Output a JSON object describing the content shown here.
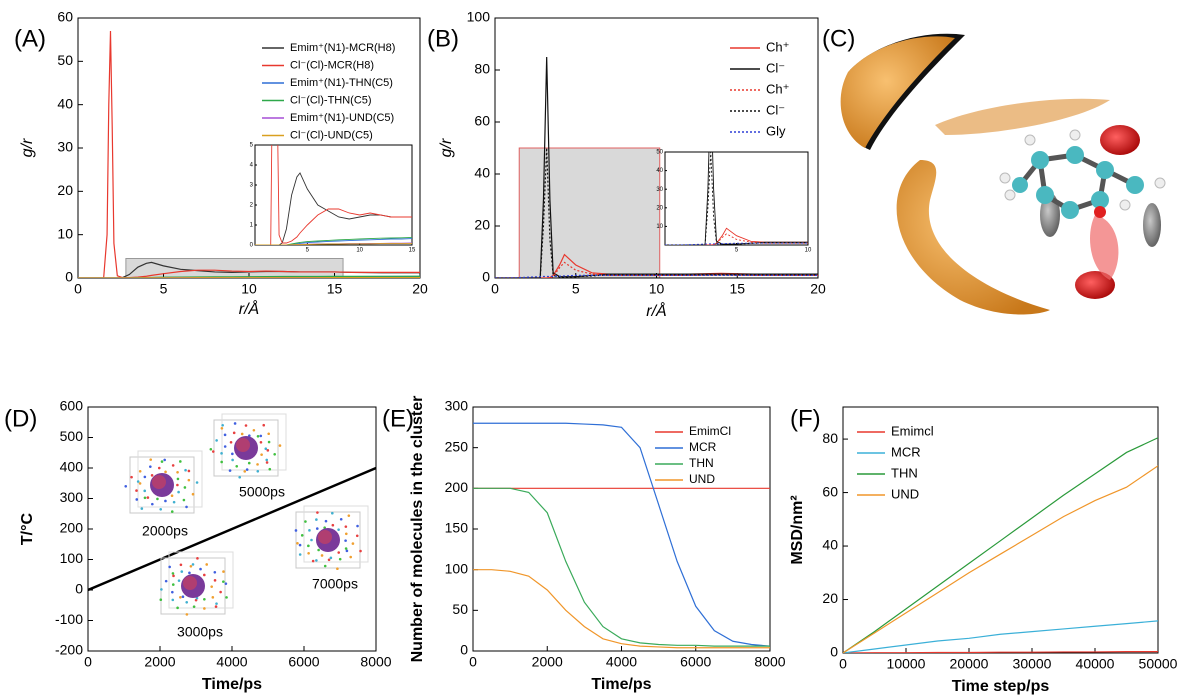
{
  "chart_data": [
    {
      "type": "line",
      "panel_label": "(A)",
      "xlabel": "r/Å",
      "ylabel": "g/r",
      "xlim": [
        0,
        20
      ],
      "ylim": [
        0,
        60
      ],
      "xticks": [
        0,
        5,
        10,
        15,
        20
      ],
      "yticks": [
        0,
        10,
        20,
        30,
        40,
        50,
        60
      ],
      "legend": "upper right",
      "x": [
        0,
        1,
        1.5,
        1.7,
        1.8,
        1.9,
        2.0,
        2.1,
        2.3,
        2.6,
        3,
        3.5,
        4,
        4.3,
        5,
        6,
        7,
        8,
        9,
        10,
        11,
        12,
        13,
        14,
        15,
        16,
        18,
        20
      ],
      "series": [
        {
          "name": "Emim⁺(N1)-MCR(H8)",
          "color": "#333333",
          "linestyle": "solid",
          "values": [
            0,
            0,
            0,
            0,
            0,
            0,
            0,
            0,
            0,
            0.1,
            0.8,
            2.5,
            3.4,
            3.6,
            2.8,
            2.0,
            1.7,
            1.4,
            1.3,
            1.4,
            1.5,
            1.5,
            1.4,
            1.4,
            1.4,
            1.3,
            1.2,
            1.2
          ]
        },
        {
          "name": "Cl⁻(Cl)-MCR(H8)",
          "color": "#e8382e",
          "linestyle": "solid",
          "values": [
            0,
            0,
            0,
            10,
            40,
            57,
            35,
            8,
            0.5,
            0.1,
            0.1,
            0.2,
            0.4,
            0.6,
            1.0,
            1.5,
            1.8,
            1.8,
            1.6,
            1.5,
            1.6,
            1.5,
            1.4,
            1.4,
            1.4,
            1.3,
            1.3,
            1.3
          ]
        },
        {
          "name": "Emim⁺(N1)-THN(C5)",
          "color": "#2f6fd6",
          "linestyle": "solid",
          "values": [
            0,
            0,
            0,
            0,
            0,
            0,
            0,
            0,
            0,
            0,
            0,
            0.02,
            0.05,
            0.08,
            0.12,
            0.15,
            0.18,
            0.2,
            0.22,
            0.24,
            0.26,
            0.28,
            0.3,
            0.3,
            0.32,
            0.33,
            0.34,
            0.35
          ]
        },
        {
          "name": "Cl⁻(Cl)-THN(C5)",
          "color": "#2ea84a",
          "linestyle": "solid",
          "values": [
            0,
            0,
            0,
            0,
            0,
            0,
            0,
            0,
            0,
            0,
            0,
            0.05,
            0.1,
            0.13,
            0.17,
            0.2,
            0.23,
            0.26,
            0.28,
            0.3,
            0.32,
            0.34,
            0.35,
            0.36,
            0.38,
            0.38,
            0.39,
            0.4
          ]
        },
        {
          "name": "Emim⁺(N1)-UND(C5)",
          "color": "#a64fd6",
          "linestyle": "solid",
          "values": [
            0,
            0,
            0,
            0,
            0,
            0,
            0,
            0,
            0,
            0,
            0,
            0.01,
            0.02,
            0.03,
            0.04,
            0.05,
            0.06,
            0.06,
            0.07,
            0.07,
            0.08,
            0.08,
            0.09,
            0.09,
            0.1,
            0.1,
            0.1,
            0.1
          ]
        },
        {
          "name": "Cl⁻(Cl)-UND(C5)",
          "color": "#d9a020",
          "linestyle": "solid",
          "values": [
            0,
            0,
            0,
            0,
            0,
            0,
            0,
            0,
            0,
            0,
            0,
            0.01,
            0.02,
            0.02,
            0.03,
            0.04,
            0.05,
            0.05,
            0.06,
            0.06,
            0.06,
            0.07,
            0.07,
            0.07,
            0.08,
            0.08,
            0.08,
            0.08
          ]
        }
      ],
      "inset": {
        "xlim": [
          0,
          15
        ],
        "ylim": [
          0,
          5
        ],
        "xticks": [
          5,
          10,
          15
        ],
        "yticks": [
          0,
          1,
          2,
          3,
          4,
          5
        ],
        "highlight_xlim": [
          2.8,
          15.5
        ],
        "highlight_ylim": [
          0,
          4.5
        ],
        "highlight_color": "#d9d9d9",
        "highlight_edge": "#999999"
      }
    },
    {
      "type": "line",
      "panel_label": "(B)",
      "xlabel": "r/Å",
      "ylabel": "g/r",
      "xlim": [
        0,
        20
      ],
      "ylim": [
        0,
        100
      ],
      "xticks": [
        0,
        5,
        10,
        15,
        20
      ],
      "yticks": [
        0,
        20,
        40,
        60,
        80,
        100
      ],
      "legend": "upper right",
      "x": [
        0,
        1,
        2,
        2.8,
        3.0,
        3.2,
        3.4,
        3.6,
        4,
        4.3,
        5,
        6,
        7,
        8,
        10,
        12,
        14,
        16,
        18,
        20
      ],
      "series": [
        {
          "name": "Ch⁺",
          "color": "#e8382e",
          "linestyle": "solid",
          "values": [
            0,
            0,
            0,
            0,
            0,
            0,
            0.2,
            1,
            5,
            9,
            5,
            2,
            1.5,
            1.5,
            1.5,
            1.5,
            1.8,
            1.5,
            1.5,
            1.5
          ]
        },
        {
          "name": "Cl⁻",
          "color": "#111111",
          "linestyle": "solid",
          "values": [
            0,
            0,
            0,
            0,
            30,
            85,
            30,
            2,
            0.5,
            0.5,
            0.5,
            1,
            1.5,
            1.5,
            1.5,
            1.5,
            1.5,
            1.5,
            1.5,
            1.5
          ]
        },
        {
          "name": "Ch⁺",
          "color": "#e8382e",
          "linestyle": "dotted",
          "values": [
            0,
            0,
            0,
            0,
            0,
            0,
            0.1,
            0.5,
            4,
            6,
            3,
            1.5,
            1,
            1,
            1,
            1,
            1.2,
            1,
            1,
            1
          ]
        },
        {
          "name": "Cl⁻",
          "color": "#111111",
          "linestyle": "dotted",
          "values": [
            0,
            0,
            0,
            0,
            20,
            50,
            15,
            1,
            0.4,
            0.4,
            0.5,
            0.8,
            1.2,
            1.2,
            1.2,
            1.2,
            1.2,
            1.2,
            1.2,
            1.2
          ]
        },
        {
          "name": "Gly",
          "color": "#2f3fd6",
          "linestyle": "dotted",
          "values": [
            0,
            0,
            0.3,
            0.5,
            0.6,
            0.6,
            0.6,
            0.6,
            0.7,
            0.8,
            1,
            1,
            1,
            1,
            1,
            1,
            1,
            1,
            1,
            1
          ]
        }
      ],
      "inset": {
        "xlim": [
          0,
          10
        ],
        "ylim": [
          0,
          50
        ],
        "xticks": [
          5,
          10
        ],
        "yticks": [
          10,
          20,
          30,
          40,
          50
        ],
        "highlight_xlim": [
          1.5,
          10.2
        ],
        "highlight_ylim": [
          0,
          50
        ],
        "highlight_color": "#d9d9d9",
        "highlight_edge": "#e06060"
      }
    },
    {
      "type": "image",
      "panel_label": "(C)"
    },
    {
      "type": "line",
      "panel_label": "(D)",
      "xlabel": "Time/ps",
      "ylabel": "T/°C",
      "xlim": [
        0,
        8000
      ],
      "ylim": [
        -200,
        600
      ],
      "xticks": [
        0,
        2000,
        4000,
        6000,
        8000
      ],
      "yticks": [
        -200,
        -100,
        0,
        100,
        200,
        300,
        400,
        500,
        600
      ],
      "x": [
        0,
        500,
        1000,
        1500,
        2000,
        2500,
        3000,
        3500,
        4000,
        4500,
        5000,
        5500,
        6000,
        6500,
        7000,
        7500,
        8000
      ],
      "series": [
        {
          "color": "#000000",
          "linestyle": "solid",
          "values": [
            0,
            25,
            50,
            75,
            100,
            125,
            150,
            175,
            200,
            225,
            250,
            275,
            300,
            325,
            350,
            375,
            400
          ]
        }
      ],
      "annotations": [
        "2000ps",
        "5000ps",
        "3000ps",
        "7000ps"
      ]
    },
    {
      "type": "line",
      "panel_label": "(E)",
      "xlabel": "Time/ps",
      "ylabel": "Number of molecules in the cluster",
      "xlim": [
        0,
        8000
      ],
      "ylim": [
        0,
        300
      ],
      "xticks": [
        0,
        2000,
        4000,
        6000,
        8000
      ],
      "yticks": [
        0,
        50,
        100,
        150,
        200,
        250,
        300
      ],
      "legend": "upper right",
      "x": [
        0,
        500,
        1000,
        1500,
        2000,
        2500,
        3000,
        3500,
        4000,
        4500,
        5000,
        5500,
        6000,
        6500,
        7000,
        7500,
        8000
      ],
      "series": [
        {
          "name": "EmimCl",
          "color": "#e8382e",
          "linestyle": "solid",
          "values": [
            200,
            200,
            200,
            200,
            200,
            200,
            200,
            200,
            200,
            200,
            200,
            200,
            200,
            200,
            200,
            200,
            200
          ]
        },
        {
          "name": "MCR",
          "color": "#2f6fd6",
          "linestyle": "solid",
          "values": [
            280,
            280,
            280,
            280,
            280,
            280,
            279,
            278,
            275,
            250,
            180,
            110,
            55,
            25,
            12,
            8,
            6
          ]
        },
        {
          "name": "THN",
          "color": "#3aaa5a",
          "linestyle": "solid",
          "values": [
            200,
            200,
            200,
            195,
            170,
            110,
            60,
            30,
            15,
            10,
            8,
            7,
            7,
            6,
            6,
            6,
            6
          ]
        },
        {
          "name": "UND",
          "color": "#f0962a",
          "linestyle": "solid",
          "values": [
            100,
            100,
            98,
            92,
            75,
            50,
            30,
            15,
            9,
            6,
            5,
            4,
            4,
            4,
            4,
            4,
            4
          ]
        }
      ]
    },
    {
      "type": "line",
      "panel_label": "(F)",
      "xlabel": "Time step/ps",
      "ylabel": "MSD/nm²",
      "xlim": [
        0,
        50000
      ],
      "ylim": [
        0,
        92
      ],
      "xticks": [
        0,
        10000,
        20000,
        30000,
        40000,
        50000
      ],
      "yticks": [
        0,
        20,
        40,
        60,
        80
      ],
      "legend": "upper left",
      "x": [
        0,
        5000,
        10000,
        15000,
        20000,
        25000,
        30000,
        35000,
        40000,
        45000,
        50000
      ],
      "series": [
        {
          "name": "Emimcl",
          "color": "#e8382e",
          "linestyle": "solid",
          "values": [
            0,
            0.1,
            0.1,
            0.2,
            0.2,
            0.3,
            0.3,
            0.4,
            0.4,
            0.5,
            0.5
          ]
        },
        {
          "name": "MCR",
          "color": "#3bb0d8",
          "linestyle": "solid",
          "values": [
            0,
            1.5,
            3,
            4.5,
            5.5,
            7,
            8,
            9,
            10,
            11,
            12
          ]
        },
        {
          "name": "THN",
          "color": "#2a9a3a",
          "linestyle": "solid",
          "values": [
            0,
            8,
            16.5,
            25,
            33.5,
            42,
            50.5,
            59,
            67,
            75,
            80.5
          ]
        },
        {
          "name": "UND",
          "color": "#f0962a",
          "linestyle": "solid",
          "values": [
            0,
            7.5,
            15,
            22.5,
            30,
            37,
            44,
            51,
            57,
            62,
            70
          ]
        }
      ]
    }
  ]
}
